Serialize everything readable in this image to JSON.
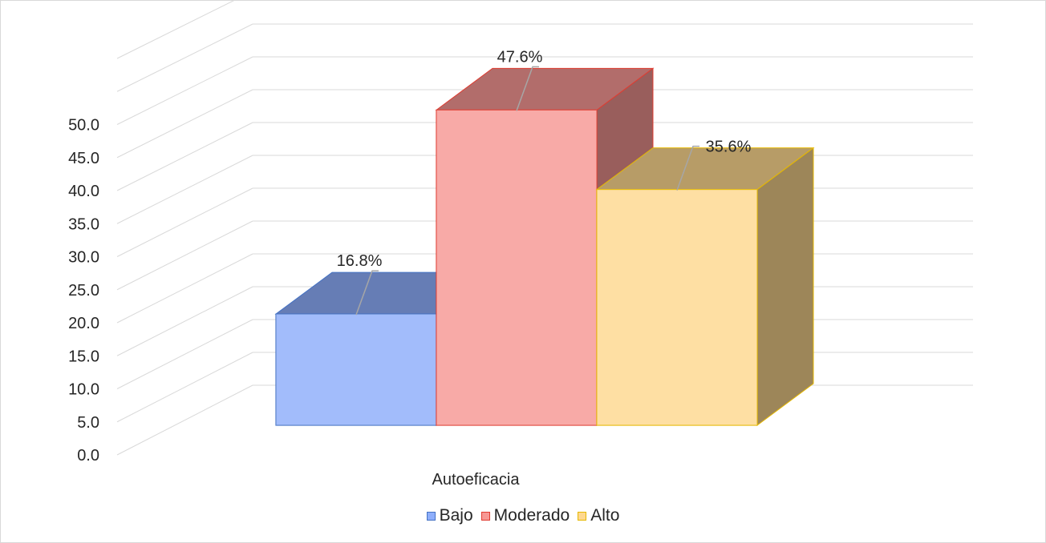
{
  "chart_data": {
    "type": "bar",
    "style": "3d-clustered-column",
    "categories": [
      "Autoeficacia"
    ],
    "series": [
      {
        "name": "Bajo",
        "values": [
          16.8
        ],
        "label": "16.8%",
        "color": "#8eaefb",
        "stroke": "#4472c4"
      },
      {
        "name": "Moderado",
        "values": [
          47.6
        ],
        "label": "47.6%",
        "color": "#f79894",
        "stroke": "#e03c31"
      },
      {
        "name": "Alto",
        "values": [
          35.6
        ],
        "label": "35.6%",
        "color": "#fed88f",
        "stroke": "#e6b800"
      }
    ],
    "y_ticks": [
      "0.0",
      "5.0",
      "10.0",
      "15.0",
      "20.0",
      "25.0",
      "30.0",
      "35.0",
      "40.0",
      "45.0",
      "50.0"
    ],
    "ylim": [
      0,
      50
    ],
    "grid": true,
    "legend_position": "bottom",
    "title": "",
    "xlabel": "",
    "ylabel": ""
  }
}
